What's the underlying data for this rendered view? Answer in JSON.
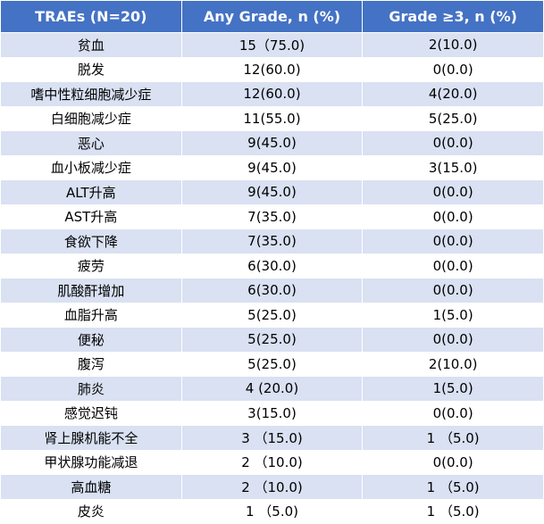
{
  "table": {
    "header": [
      "TRAEs (N=20)",
      "Any Grade, n (%)",
      "Grade ≥3, n (%)"
    ],
    "rows": [
      [
        "贫血",
        "15（75.0)",
        "2(10.0)"
      ],
      [
        "脱发",
        "12(60.0)",
        "0(0.0)"
      ],
      [
        "嗜中性粒细胞减少症",
        "12(60.0)",
        "4(20.0)"
      ],
      [
        "白细胞减少症",
        "11(55.0)",
        "5(25.0)"
      ],
      [
        "恶心",
        "9(45.0)",
        "0(0.0)"
      ],
      [
        "血小板减少症",
        "9(45.0)",
        "3(15.0)"
      ],
      [
        "ALT升高",
        "9(45.0)",
        "0(0.0)"
      ],
      [
        "AST升高",
        "7(35.0)",
        "0(0.0)"
      ],
      [
        "食欲下降",
        "7(35.0)",
        "0(0.0)"
      ],
      [
        "疲劳",
        "6(30.0)",
        "0(0.0)"
      ],
      [
        "肌酸酐增加",
        "6(30.0)",
        "0(0.0)"
      ],
      [
        "血脂升高",
        "5(25.0)",
        "1(5.0)"
      ],
      [
        "便秘",
        "5(25.0)",
        "0(0.0)"
      ],
      [
        "腹泻",
        "5(25.0)",
        "2(10.0)"
      ],
      [
        "肺炎",
        "4 (20.0)",
        "1(5.0)"
      ],
      [
        "感觉迟钝",
        "3(15.0)",
        "0(0.0)"
      ],
      [
        "肾上腺机能不全",
        "3 （15.0)",
        "1 （5.0)"
      ],
      [
        "甲状腺功能减退",
        "2 （10.0)",
        "0(0.0)"
      ],
      [
        "高血糖",
        "2 （10.0)",
        "1 （5.0)"
      ],
      [
        "皮炎",
        "1 （5.0)",
        "1 （5.0)"
      ]
    ]
  }
}
